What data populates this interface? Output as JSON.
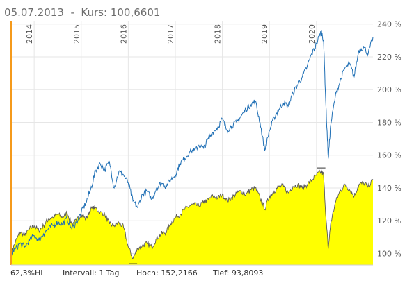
{
  "header": {
    "date": "05.07.2013",
    "separator": "-",
    "price_label": "Kurs:",
    "price_value": "100,6601"
  },
  "footer": {
    "hl": "62,3%HL",
    "interval": "Intervall: 1 Tag",
    "high": "Hoch: 152,2166",
    "low": "Tief: 93,8093"
  },
  "colors": {
    "blue_line": "#1f6fb5",
    "area_fill": "#ffff00",
    "area_line": "#5a5a5a",
    "start_marker": "#f59a1b",
    "grid": "#e6e6e6",
    "text": "#555555"
  },
  "chart_data": {
    "type": "line",
    "x_tick_labels": [
      "2014",
      "2015",
      "2016",
      "2017",
      "2018",
      "2019",
      "2020"
    ],
    "x_tick_dates": [
      2014.0,
      2015.0,
      2016.0,
      2017.0,
      2018.0,
      2019.0,
      2020.0
    ],
    "y_tick_labels": [
      "100 %",
      "120 %",
      "140 %",
      "160 %",
      "180 %",
      "200 %",
      "220 %",
      "240 %"
    ],
    "y_ticks": [
      100,
      120,
      140,
      160,
      180,
      200,
      220,
      240
    ],
    "ylim": [
      93,
      242
    ],
    "xlim": [
      2013.51,
      2021.2
    ],
    "grid": true,
    "series": [
      {
        "style": "line",
        "points": [
          [
            2013.51,
            100
          ],
          [
            2013.6,
            103
          ],
          [
            2013.7,
            106
          ],
          [
            2013.8,
            104
          ],
          [
            2013.9,
            108
          ],
          [
            2014.0,
            111
          ],
          [
            2014.1,
            108
          ],
          [
            2014.2,
            112
          ],
          [
            2014.3,
            115
          ],
          [
            2014.4,
            117
          ],
          [
            2014.5,
            119
          ],
          [
            2014.6,
            118
          ],
          [
            2014.7,
            121
          ],
          [
            2014.8,
            115
          ],
          [
            2014.9,
            119
          ],
          [
            2015.0,
            125
          ],
          [
            2015.1,
            131
          ],
          [
            2015.2,
            139
          ],
          [
            2015.3,
            150
          ],
          [
            2015.4,
            155
          ],
          [
            2015.5,
            151
          ],
          [
            2015.6,
            156
          ],
          [
            2015.7,
            140
          ],
          [
            2015.8,
            150
          ],
          [
            2015.9,
            148
          ],
          [
            2016.0,
            143
          ],
          [
            2016.1,
            132
          ],
          [
            2016.2,
            128
          ],
          [
            2016.3,
            136
          ],
          [
            2016.4,
            138
          ],
          [
            2016.5,
            133
          ],
          [
            2016.6,
            140
          ],
          [
            2016.7,
            143
          ],
          [
            2016.8,
            141
          ],
          [
            2016.9,
            145
          ],
          [
            2017.0,
            148
          ],
          [
            2017.1,
            155
          ],
          [
            2017.2,
            158
          ],
          [
            2017.3,
            162
          ],
          [
            2017.4,
            163
          ],
          [
            2017.5,
            166
          ],
          [
            2017.6,
            164
          ],
          [
            2017.7,
            170
          ],
          [
            2017.8,
            174
          ],
          [
            2017.9,
            177
          ],
          [
            2018.0,
            182
          ],
          [
            2018.1,
            175
          ],
          [
            2018.2,
            178
          ],
          [
            2018.3,
            180
          ],
          [
            2018.4,
            184
          ],
          [
            2018.5,
            188
          ],
          [
            2018.6,
            191
          ],
          [
            2018.7,
            193
          ],
          [
            2018.8,
            180
          ],
          [
            2018.9,
            163
          ],
          [
            2019.0,
            175
          ],
          [
            2019.1,
            183
          ],
          [
            2019.2,
            188
          ],
          [
            2019.3,
            192
          ],
          [
            2019.4,
            190
          ],
          [
            2019.5,
            198
          ],
          [
            2019.6,
            203
          ],
          [
            2019.7,
            208
          ],
          [
            2019.8,
            214
          ],
          [
            2019.9,
            222
          ],
          [
            2020.0,
            228
          ],
          [
            2020.1,
            236
          ],
          [
            2020.15,
            230
          ],
          [
            2020.2,
            190
          ],
          [
            2020.25,
            158
          ],
          [
            2020.3,
            178
          ],
          [
            2020.4,
            196
          ],
          [
            2020.5,
            205
          ],
          [
            2020.6,
            213
          ],
          [
            2020.7,
            216
          ],
          [
            2020.8,
            208
          ],
          [
            2020.9,
            224
          ],
          [
            2021.0,
            226
          ],
          [
            2021.1,
            222
          ],
          [
            2021.2,
            232
          ]
        ]
      },
      {
        "style": "area",
        "points": [
          [
            2013.51,
            100
          ],
          [
            2013.6,
            107
          ],
          [
            2013.7,
            113
          ],
          [
            2013.8,
            111
          ],
          [
            2013.9,
            115
          ],
          [
            2014.0,
            117
          ],
          [
            2014.1,
            114
          ],
          [
            2014.2,
            117
          ],
          [
            2014.3,
            121
          ],
          [
            2014.4,
            122
          ],
          [
            2014.5,
            124
          ],
          [
            2014.6,
            122
          ],
          [
            2014.7,
            125
          ],
          [
            2014.8,
            118
          ],
          [
            2014.9,
            120
          ],
          [
            2015.0,
            124
          ],
          [
            2015.1,
            121
          ],
          [
            2015.2,
            127
          ],
          [
            2015.3,
            128
          ],
          [
            2015.4,
            125
          ],
          [
            2015.5,
            124
          ],
          [
            2015.6,
            118
          ],
          [
            2015.7,
            117
          ],
          [
            2015.8,
            119
          ],
          [
            2015.9,
            116
          ],
          [
            2016.0,
            104
          ],
          [
            2016.1,
            97
          ],
          [
            2016.2,
            103
          ],
          [
            2016.3,
            105
          ],
          [
            2016.4,
            106
          ],
          [
            2016.5,
            104
          ],
          [
            2016.6,
            109
          ],
          [
            2016.7,
            112
          ],
          [
            2016.8,
            113
          ],
          [
            2016.9,
            118
          ],
          [
            2017.0,
            122
          ],
          [
            2017.1,
            124
          ],
          [
            2017.2,
            127
          ],
          [
            2017.3,
            129
          ],
          [
            2017.4,
            130
          ],
          [
            2017.5,
            129
          ],
          [
            2017.6,
            131
          ],
          [
            2017.7,
            133
          ],
          [
            2017.8,
            135
          ],
          [
            2017.9,
            134
          ],
          [
            2018.0,
            136
          ],
          [
            2018.1,
            132
          ],
          [
            2018.2,
            134
          ],
          [
            2018.3,
            137
          ],
          [
            2018.4,
            138
          ],
          [
            2018.5,
            136
          ],
          [
            2018.6,
            139
          ],
          [
            2018.7,
            140
          ],
          [
            2018.8,
            134
          ],
          [
            2018.9,
            127
          ],
          [
            2019.0,
            135
          ],
          [
            2019.1,
            138
          ],
          [
            2019.2,
            141
          ],
          [
            2019.3,
            141
          ],
          [
            2019.4,
            137
          ],
          [
            2019.5,
            141
          ],
          [
            2019.6,
            142
          ],
          [
            2019.7,
            140
          ],
          [
            2019.8,
            142
          ],
          [
            2019.9,
            145
          ],
          [
            2020.0,
            148
          ],
          [
            2020.1,
            150
          ],
          [
            2020.15,
            148
          ],
          [
            2020.2,
            122
          ],
          [
            2020.25,
            103
          ],
          [
            2020.3,
            118
          ],
          [
            2020.4,
            131
          ],
          [
            2020.5,
            138
          ],
          [
            2020.6,
            142
          ],
          [
            2020.7,
            139
          ],
          [
            2020.8,
            135
          ],
          [
            2020.9,
            142
          ],
          [
            2021.0,
            143
          ],
          [
            2021.1,
            141
          ],
          [
            2021.2,
            145
          ]
        ]
      }
    ],
    "markers": [
      {
        "label": "Hoch",
        "x": 2020.1,
        "y": 152.2166
      },
      {
        "label": "Tief",
        "x": 2016.1,
        "y": 93.8093
      }
    ]
  }
}
